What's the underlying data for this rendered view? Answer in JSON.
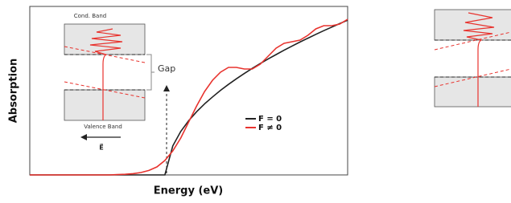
{
  "chart_data": {
    "type": "line",
    "x_label": "Energy (eV)",
    "y_label": "Absorption",
    "x": [
      0,
      0.25,
      0.5,
      0.75,
      1,
      1.25,
      1.5,
      1.75,
      2,
      2.25,
      2.5,
      2.75,
      3,
      3.25,
      3.5,
      3.75,
      4,
      4.25,
      4.5,
      4.75,
      5,
      5.25,
      5.5,
      5.75,
      6,
      6.25,
      6.5,
      6.75,
      7,
      7.25,
      7.5,
      7.75,
      8,
      8.25,
      8.5,
      8.75,
      9,
      9.25,
      9.5,
      9.75,
      10
    ],
    "xlim": [
      0,
      10
    ],
    "ylim": [
      0,
      10.5
    ],
    "series": [
      {
        "name": "F = 0",
        "color": "#222222",
        "values": [
          0,
          0,
          0,
          0,
          0,
          0,
          0,
          0,
          0,
          0,
          0,
          0,
          0,
          0,
          0,
          0,
          0,
          0,
          1.81,
          2.71,
          3.38,
          3.94,
          4.43,
          4.86,
          5.27,
          5.64,
          5.99,
          6.32,
          6.64,
          6.94,
          7.23,
          7.5,
          7.77,
          8.03,
          8.28,
          8.52,
          8.76,
          8.99,
          9.21,
          9.43,
          9.64
        ]
      },
      {
        "name": "F ≠ 0",
        "color": "#e8332e",
        "values": [
          0,
          0,
          0,
          0,
          0,
          0,
          0,
          0,
          0,
          0,
          0,
          0.02,
          0.04,
          0.08,
          0.15,
          0.28,
          0.5,
          0.9,
          1.5,
          2.3,
          3.3,
          4.3,
          5.2,
          5.9,
          6.4,
          6.7,
          6.7,
          6.6,
          6.6,
          6.9,
          7.4,
          7.9,
          8.2,
          8.3,
          8.4,
          8.7,
          9.1,
          9.3,
          9.3,
          9.4,
          9.7
        ]
      }
    ],
    "inset": {
      "top_label": "Cond. Band",
      "bottom_label": "Valence Band",
      "gap_label": "Gap",
      "field_label": "E⃗"
    }
  }
}
